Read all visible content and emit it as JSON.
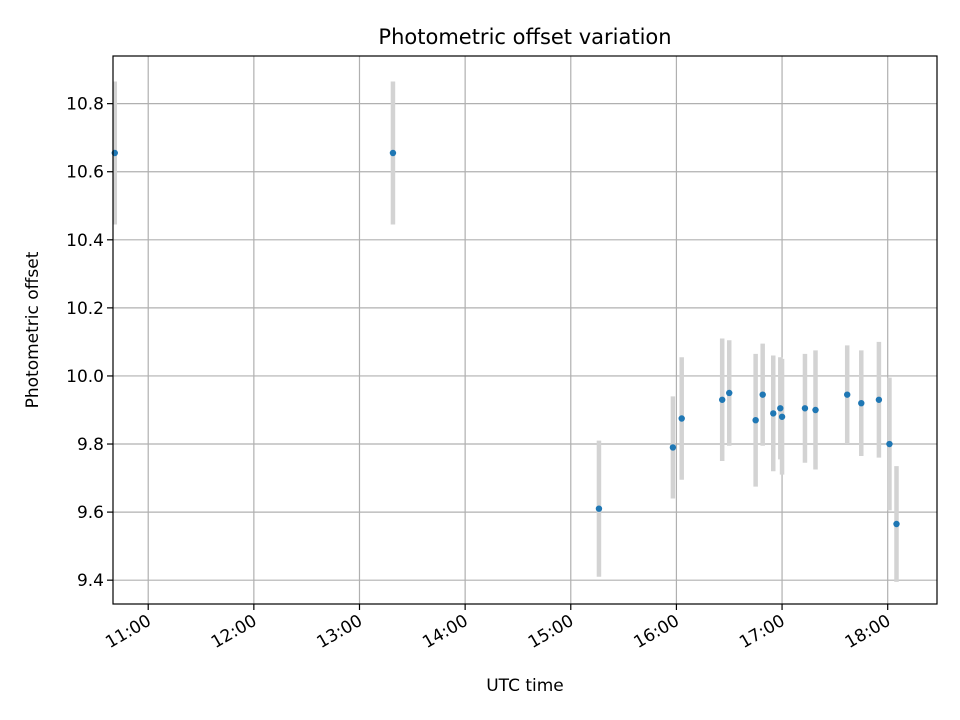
{
  "chart_data": {
    "type": "scatter",
    "title": "Photometric offset variation",
    "xlabel": "UTC time",
    "ylabel": "Photometric offset",
    "grid": true,
    "xlim": [
      "10:40",
      "18:28"
    ],
    "ylim": [
      9.33,
      10.94
    ],
    "x_ticks": [
      "11:00",
      "12:00",
      "13:00",
      "14:00",
      "15:00",
      "16:00",
      "17:00",
      "18:00"
    ],
    "y_ticks": [
      9.4,
      9.6,
      9.8,
      10.0,
      10.2,
      10.4,
      10.6,
      10.8
    ],
    "y_tick_labels": [
      "9.4",
      "9.6",
      "9.8",
      "10.0",
      "10.2",
      "10.4",
      "10.6",
      "10.8"
    ],
    "colors": {
      "point": "#1f77b4",
      "errorbar": "#d3d3d3",
      "grid": "#b0b0b0"
    },
    "points": [
      {
        "x": "10:41",
        "y": 10.655,
        "err": 0.21
      },
      {
        "x": "13:19",
        "y": 10.655,
        "err": 0.21
      },
      {
        "x": "15:16",
        "y": 9.61,
        "err": 0.2
      },
      {
        "x": "15:58",
        "y": 9.79,
        "err": 0.15
      },
      {
        "x": "16:03",
        "y": 9.875,
        "err": 0.18
      },
      {
        "x": "16:26",
        "y": 9.93,
        "err": 0.18
      },
      {
        "x": "16:30",
        "y": 9.95,
        "err": 0.155
      },
      {
        "x": "16:45",
        "y": 9.87,
        "err": 0.195
      },
      {
        "x": "16:49",
        "y": 9.945,
        "err": 0.15
      },
      {
        "x": "16:55",
        "y": 9.89,
        "err": 0.17
      },
      {
        "x": "16:59",
        "y": 9.905,
        "err": 0.15
      },
      {
        "x": "17:00",
        "y": 9.88,
        "err": 0.17
      },
      {
        "x": "17:13",
        "y": 9.905,
        "err": 0.16
      },
      {
        "x": "17:19",
        "y": 9.9,
        "err": 0.175
      },
      {
        "x": "17:37",
        "y": 9.945,
        "err": 0.145
      },
      {
        "x": "17:45",
        "y": 9.92,
        "err": 0.155
      },
      {
        "x": "17:55",
        "y": 9.93,
        "err": 0.17
      },
      {
        "x": "18:01",
        "y": 9.8,
        "err": 0.195
      },
      {
        "x": "18:05",
        "y": 9.565,
        "err": 0.17
      }
    ]
  }
}
